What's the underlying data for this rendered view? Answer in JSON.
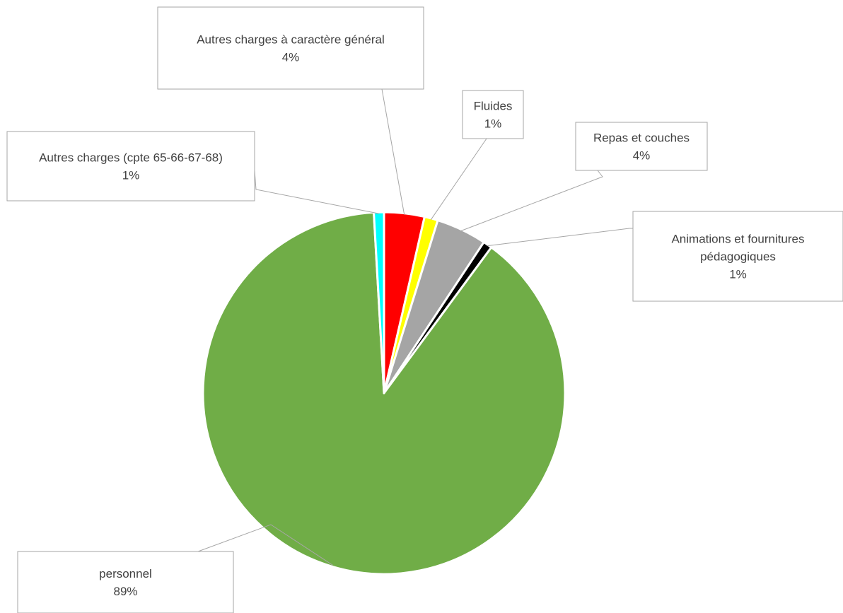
{
  "chart_data": {
    "type": "pie",
    "title": "",
    "slices": [
      {
        "name": "Autres charges à caractère général",
        "label_lines": [
          "Autres charges à caractère général"
        ],
        "pct_label": "4%",
        "value": 3.6,
        "color": "#ff0000"
      },
      {
        "name": "Fluides",
        "label_lines": [
          "Fluides"
        ],
        "pct_label": "1%",
        "value": 1.2,
        "color": "#ffff00"
      },
      {
        "name": "Repas et couches",
        "label_lines": [
          "Repas et couches"
        ],
        "pct_label": "4%",
        "value": 4.5,
        "color": "#a5a5a5"
      },
      {
        "name": "Animations et fournitures pédagogiques",
        "label_lines": [
          "Animations et fournitures",
          "pédagogiques"
        ],
        "pct_label": "1%",
        "value": 0.8,
        "color": "#000000"
      },
      {
        "name": "personnel",
        "label_lines": [
          "personnel"
        ],
        "pct_label": "89%",
        "value": 89.0,
        "color": "#70ad47"
      },
      {
        "name": "Autres charges (cpte 65-66-67-68)",
        "label_lines": [
          "Autres charges (cpte 65-66-67-68)"
        ],
        "pct_label": "1%",
        "value": 0.9,
        "color": "#00ffff"
      }
    ],
    "legend": "none",
    "start_angle": "12 o'clock",
    "direction": "clockwise"
  }
}
